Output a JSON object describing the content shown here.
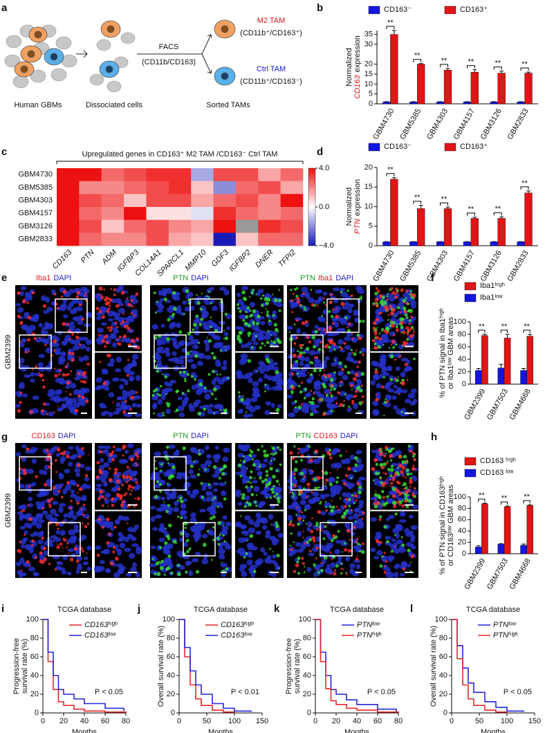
{
  "panel_labels": [
    "a",
    "b",
    "c",
    "d",
    "e",
    "f",
    "g",
    "h",
    "i",
    "j",
    "k",
    "l"
  ],
  "diagram": {
    "human": "Human GBMs",
    "dissociated": "Dissociated cells",
    "facs": "FACS",
    "facs_markers": "(CD11b/CD163)",
    "m2": "M2 TAM",
    "m2_markers": "(CD11b⁺/CD163⁺)",
    "ctrl": "Ctrl TAM",
    "ctrl_markers": "(CD11b⁺/CD163⁻)",
    "sorted": "Sorted TAMs"
  },
  "micrographs": [
    {
      "sample": "GBM2399",
      "channels": [
        [
          {
            "text": "Iba1",
            "color": "#e41a1c"
          },
          {
            "text": "DAPI",
            "color": "#1f1fd0"
          }
        ],
        [
          {
            "text": "PTN",
            "color": "#1a9a1a"
          },
          {
            "text": "DAPI",
            "color": "#1f1fd0"
          }
        ],
        [
          {
            "text": "PTN",
            "color": "#1a9a1a"
          },
          {
            "text": "Iba1",
            "color": "#e41a1c"
          },
          {
            "text": "DAPI",
            "color": "#1f1fd0"
          }
        ]
      ]
    },
    {
      "sample": "GBM2399",
      "channels": [
        [
          {
            "text": "CD163",
            "color": "#e41a1c"
          },
          {
            "text": "DAPI",
            "color": "#1f1fd0"
          }
        ],
        [
          {
            "text": "PTN",
            "color": "#1a9a1a"
          },
          {
            "text": "DAPI",
            "color": "#1f1fd0"
          }
        ],
        [
          {
            "text": "PTN",
            "color": "#1a9a1a"
          },
          {
            "text": "CD163",
            "color": "#e41a1c"
          },
          {
            "text": "DAPI",
            "color": "#1f1fd0"
          }
        ]
      ]
    }
  ],
  "chart_data": [
    {
      "type": "bar",
      "categories": [
        "GBM4730",
        "GBM5385",
        "GBM4303",
        "GBM4157",
        "GBM3126",
        "GBM2833"
      ],
      "series": [
        {
          "name": "CD163⁻",
          "color": "#1515e0",
          "values": [
            1,
            1,
            1,
            1,
            1,
            1
          ],
          "errors": [
            0.1,
            0.1,
            0.1,
            0.1,
            0.1,
            0.1
          ]
        },
        {
          "name": "CD163⁺",
          "color": "#e01515",
          "values": [
            35,
            20,
            17,
            16,
            15.5,
            15.5
          ],
          "errors": [
            2,
            0.3,
            0.8,
            1.2,
            1,
            0.5
          ]
        }
      ],
      "annotations": [
        "**",
        "**",
        "**",
        "**",
        "**",
        "**"
      ],
      "ylabel": [
        "Normalized"
      ],
      "ylabel_gene": "CD163",
      "ylabel_suffix": "expression",
      "ylim": [
        0,
        37
      ],
      "yticks": [
        0,
        5,
        10,
        15,
        20,
        30,
        35
      ],
      "legend": "row",
      "legend_order": [
        0,
        1
      ]
    },
    {
      "type": "heatmap",
      "title": "Upregulated genes in CD163⁺ M2 TAM /CD163⁻ Ctrl TAM",
      "rows": [
        "GBM4730",
        "GBM5385",
        "GBM4303",
        "GBM4157",
        "GBM3126",
        "GBM2833"
      ],
      "columns": [
        "CD163",
        "PTN",
        "ADM",
        "IGFBP3",
        "COL14A1",
        "SPARCL1",
        "MMP10",
        "GDF3",
        "IGFBP2",
        "DNER",
        "TFPI2"
      ],
      "values": [
        [
          4,
          4,
          2.5,
          3,
          3.5,
          3.5,
          -1.5,
          3,
          3,
          1.5,
          2.5
        ],
        [
          4,
          2,
          2,
          2.5,
          3,
          3.5,
          1,
          -2,
          2.5,
          3,
          1.5
        ],
        [
          4,
          3,
          2.5,
          1,
          3,
          3,
          1.5,
          2.5,
          3,
          2,
          4
        ],
        [
          4,
          2.5,
          2,
          4,
          0.5,
          0.5,
          -0.5,
          3.5,
          2.5,
          2,
          2.5
        ],
        [
          4,
          3,
          1,
          2.5,
          3,
          2,
          1.5,
          4,
          null,
          3.5,
          3
        ],
        [
          4,
          2.5,
          2,
          2,
          3,
          1.5,
          1,
          -4,
          1,
          2.5,
          2.5
        ]
      ],
      "zlim": [
        -4,
        4
      ],
      "zticks": [
        {
          "value": 4,
          "label": "4.0"
        },
        {
          "value": 0,
          "label": "0.0"
        },
        {
          "value": -4,
          "label": "−4.0"
        }
      ],
      "high_color": "#ee1111",
      "low_color": "#1a1ab8",
      "missing_color": "#999999"
    },
    {
      "type": "bar",
      "categories": [
        "GBM4730",
        "GBM5385",
        "GBM4303",
        "GBM4157",
        "GBM3126",
        "GBM2833"
      ],
      "series": [
        {
          "name": "CD163⁻",
          "color": "#1515e0",
          "values": [
            1,
            1,
            1,
            1,
            1,
            1
          ],
          "errors": [
            0.05,
            0.05,
            0.05,
            0.05,
            0.05,
            0.05
          ]
        },
        {
          "name": "CD163⁺",
          "color": "#e01515",
          "values": [
            17,
            9.5,
            9.5,
            7,
            7,
            13.5
          ],
          "errors": [
            0.4,
            0.8,
            0.4,
            0.3,
            0.4,
            0.5
          ]
        }
      ],
      "annotations": [
        "**",
        "**",
        "**",
        "**",
        "**",
        "**"
      ],
      "ylabel": [
        "Normalized"
      ],
      "ylabel_gene": "PTN",
      "ylabel_suffix": "expression",
      "ylim": [
        0,
        20
      ],
      "yticks": [
        0,
        5,
        10,
        15,
        20
      ],
      "legend": "row",
      "legend_order": [
        0,
        1
      ]
    },
    {
      "type": "bar",
      "categories": [
        "GBM2399",
        "GBM7503",
        "GBM4668"
      ],
      "series": [
        {
          "name": "Iba1ˡᵒʷ",
          "color": "#1515e0",
          "values": [
            22,
            26,
            22
          ],
          "errors": [
            3,
            6,
            3
          ]
        },
        {
          "name": "Iba1ʰⁱᵍʰ",
          "color": "#e01515",
          "values": [
            78,
            74,
            77
          ],
          "errors": [
            2,
            6,
            3
          ]
        }
      ],
      "annotations": [
        "**",
        "**",
        "**"
      ],
      "ylabel": [
        "% of PTN signal in Iba1ʰⁱᵍʰ",
        "or Iba1ˡᵒʷ GBM areas"
      ],
      "ylim": [
        0,
        100
      ],
      "yticks": [
        0,
        20,
        40,
        60,
        80,
        100
      ],
      "legend": "column",
      "legend_order": [
        1,
        0
      ]
    },
    {
      "type": "bar",
      "categories": [
        "GBM2399",
        "GBM7503",
        "GBM4668"
      ],
      "series": [
        {
          "name": "CD163 ˡᵒʷ",
          "color": "#1515e0",
          "values": [
            12,
            17,
            15
          ],
          "errors": [
            2,
            1,
            2
          ]
        },
        {
          "name": "CD163 ʰⁱᵍʰ",
          "color": "#e01515",
          "values": [
            88,
            83,
            85
          ],
          "errors": [
            1,
            1,
            1.5
          ]
        }
      ],
      "annotations": [
        "**",
        "**",
        "**"
      ],
      "ylabel": [
        "% of PTN signal in CD163ʰⁱᵍʰ",
        "or CD163ˡᵒʷ GBM areas"
      ],
      "ylim": [
        0,
        100
      ],
      "yticks": [
        0,
        20,
        40,
        60,
        80,
        100
      ],
      "legend": "column",
      "legend_order": [
        1,
        0
      ]
    },
    {
      "type": "line",
      "step": true,
      "title": "TCGA database",
      "xlabel": "Months",
      "ylabel": [
        "Progression-free",
        "survival rate (%)"
      ],
      "annotation": "P < 0.05",
      "xlim": [
        0,
        80
      ],
      "xticks": [
        0,
        20,
        40,
        60,
        80
      ],
      "ylim": [
        0,
        100
      ],
      "yticks": [
        0,
        20,
        40,
        60,
        80,
        100
      ],
      "series": [
        {
          "name": "CD163ʰⁱᵍʰ",
          "color": "#e8262b",
          "x": [
            0,
            5,
            10,
            15,
            20,
            30,
            40,
            60,
            80
          ],
          "values": [
            100,
            55,
            25,
            12,
            8,
            4,
            2,
            1,
            0
          ]
        },
        {
          "name": "CD163ˡᵒʷ",
          "color": "#2424d8",
          "x": [
            0,
            5,
            10,
            15,
            20,
            30,
            40,
            60,
            78
          ],
          "values": [
            100,
            65,
            40,
            25,
            20,
            15,
            10,
            5,
            2
          ]
        }
      ]
    },
    {
      "type": "line",
      "step": true,
      "title": "TCGA database",
      "xlabel": "Months",
      "ylabel": [
        "Overall survival rate (%)"
      ],
      "annotation": "P < 0.01",
      "xlim": [
        0,
        150
      ],
      "xticks": [
        0,
        50,
        100,
        150
      ],
      "ylim": [
        0,
        100
      ],
      "yticks": [
        0,
        20,
        40,
        60,
        80,
        100
      ],
      "series": [
        {
          "name": "CD163ʰⁱᵍʰ",
          "color": "#e8262b",
          "x": [
            0,
            10,
            20,
            30,
            40,
            60,
            80,
            100
          ],
          "values": [
            100,
            60,
            30,
            15,
            8,
            3,
            1,
            0
          ]
        },
        {
          "name": "CD163ˡᵒʷ",
          "color": "#2424d8",
          "x": [
            0,
            10,
            20,
            30,
            40,
            60,
            80,
            100,
            130
          ],
          "values": [
            100,
            70,
            45,
            30,
            20,
            10,
            5,
            2,
            1
          ]
        }
      ]
    },
    {
      "type": "line",
      "step": true,
      "title": "TCGA database",
      "xlabel": "Months",
      "ylabel": [
        "Progression-free",
        "survival rate (%)"
      ],
      "annotation": "P < 0.05",
      "xlim": [
        0,
        80
      ],
      "xticks": [
        0,
        20,
        40,
        60,
        80
      ],
      "ylim": [
        0,
        100
      ],
      "yticks": [
        0,
        20,
        40,
        60,
        80,
        100
      ],
      "series": [
        {
          "name": "PTNˡᵒʷ",
          "color": "#2424d8",
          "x": [
            0,
            5,
            10,
            15,
            20,
            30,
            40,
            60,
            78
          ],
          "values": [
            100,
            65,
            40,
            25,
            20,
            14,
            9,
            4,
            1
          ]
        },
        {
          "name": "PTNʰⁱᵍʰ",
          "color": "#e8262b",
          "x": [
            0,
            5,
            10,
            15,
            20,
            30,
            40,
            60,
            80
          ],
          "values": [
            100,
            55,
            26,
            13,
            9,
            5,
            3,
            1,
            0
          ]
        }
      ]
    },
    {
      "type": "line",
      "step": true,
      "title": "TCGA database",
      "xlabel": "Months",
      "ylabel": [
        "Overall survival rate (%)"
      ],
      "annotation": "P < 0.05",
      "xlim": [
        0,
        150
      ],
      "xticks": [
        0,
        50,
        100,
        150
      ],
      "ylim": [
        0,
        100
      ],
      "yticks": [
        0,
        20,
        40,
        60,
        80,
        100
      ],
      "series": [
        {
          "name": "PTNˡᵒʷ",
          "color": "#2424d8",
          "x": [
            0,
            10,
            20,
            30,
            40,
            60,
            80,
            100,
            130
          ],
          "values": [
            100,
            72,
            48,
            32,
            22,
            12,
            6,
            2,
            1
          ]
        },
        {
          "name": "PTNʰⁱᵍʰ",
          "color": "#e8262b",
          "x": [
            0,
            10,
            20,
            30,
            40,
            60,
            80,
            100
          ],
          "values": [
            100,
            58,
            30,
            15,
            8,
            3,
            1,
            0
          ]
        }
      ]
    }
  ]
}
